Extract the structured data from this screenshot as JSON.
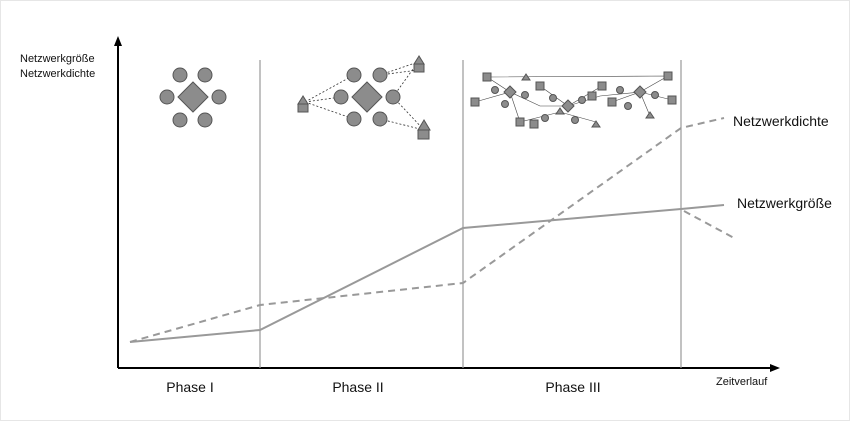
{
  "axis": {
    "y_label_1": "Netzwerkgröße",
    "y_label_2": "Netzwerkdichte",
    "x_label": "Zeitverlauf"
  },
  "phases": [
    "Phase I",
    "Phase II",
    "Phase III"
  ],
  "curves": {
    "density": "Netzwerkdichte",
    "size": "Netzwerkgröße"
  }
}
